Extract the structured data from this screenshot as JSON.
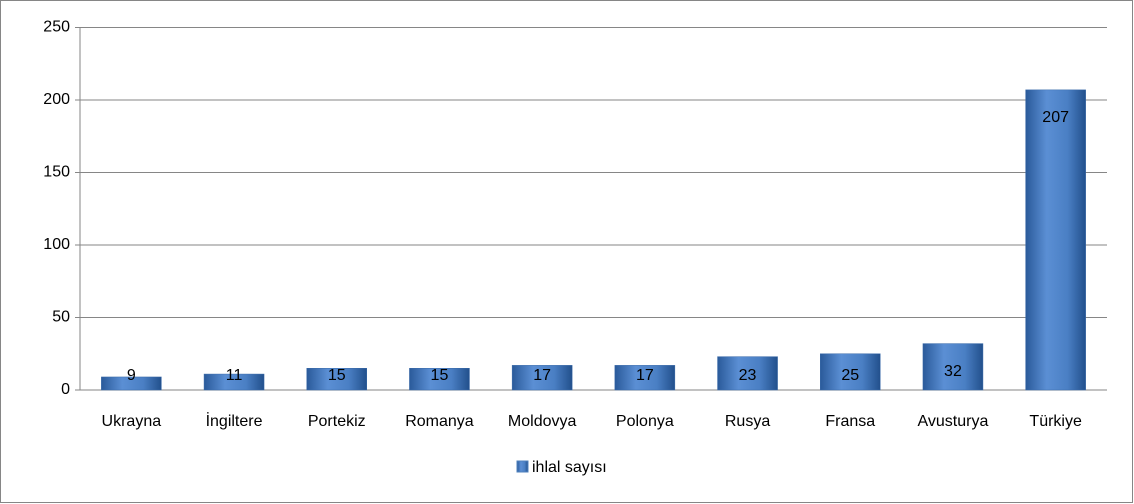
{
  "chart_data": {
    "type": "bar",
    "categories": [
      "Ukrayna",
      "İngiltere",
      "Portekiz",
      "Romanya",
      "Moldovya",
      "Polonya",
      "Rusya",
      "Fransa",
      "Avusturya",
      "Türkiye"
    ],
    "series": [
      {
        "name": "ihlal sayısı",
        "color": "#4f81bd",
        "values": [
          9,
          11,
          15,
          15,
          17,
          17,
          23,
          25,
          32,
          207
        ]
      }
    ],
    "ylim": [
      0,
      250
    ],
    "yticks": [
      0,
      50,
      100,
      150,
      200,
      250
    ],
    "grid": true,
    "legend": "bottom"
  }
}
